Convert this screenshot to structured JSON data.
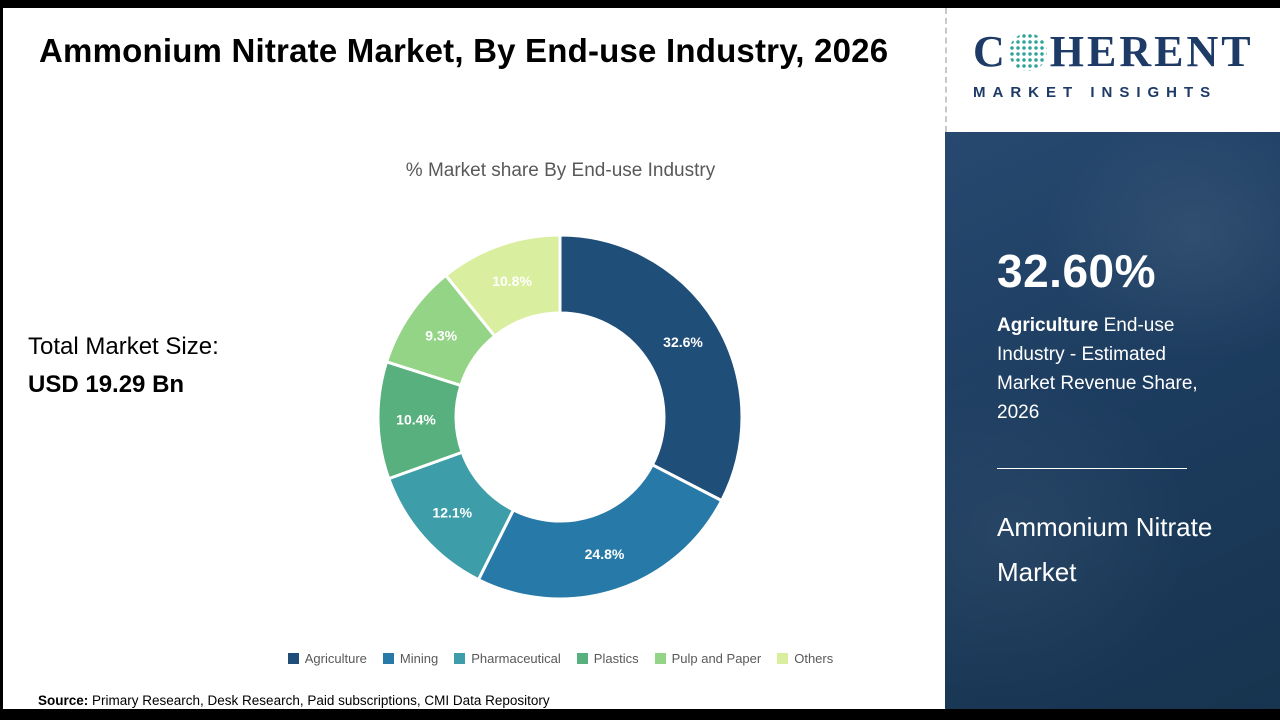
{
  "header": {
    "title": "Ammonium Nitrate Market, By End-use Industry, 2026"
  },
  "logo": {
    "letter_c": "C",
    "letters_rest": "HERENT",
    "tagline": "MARKET INSIGHTS",
    "brand_color": "#1E3A66",
    "globe_icon": "dotted-globe-icon"
  },
  "main": {
    "subtitle": "% Market share By End-use Industry",
    "total_label": "Total Market Size:",
    "total_value": "USD 19.29 Bn",
    "source_label": "Source:",
    "source_text": " Primary Research, Desk Research, Paid subscriptions, CMI Data Repository"
  },
  "chart_data": {
    "type": "pie",
    "subtype": "donut",
    "title": "% Market share By End-use Industry",
    "categories": [
      "Agriculture",
      "Mining",
      "Pharmaceutical",
      "Plastics",
      "Pulp and Paper",
      "Others"
    ],
    "values": [
      32.6,
      24.8,
      12.1,
      10.4,
      9.3,
      10.8
    ],
    "labels": [
      "32.6%",
      "24.8%",
      "12.1%",
      "10.4%",
      "9.3%",
      "10.8%"
    ],
    "colors": [
      "#1F4E79",
      "#2779A7",
      "#3D9DA8",
      "#58B07E",
      "#94D487",
      "#D9EE9E"
    ],
    "unit": "%",
    "start_angle_deg": 0,
    "clockwise": true,
    "legend_position": "bottom"
  },
  "sidebar": {
    "highlight_value": "32.60%",
    "highlight_bold": "Agriculture",
    "highlight_rest": " End-use Industry - Estimated Market Revenue Share, 2026",
    "market_name": "Ammonium Nitrate Market",
    "panel_color": "#1d3d60"
  }
}
